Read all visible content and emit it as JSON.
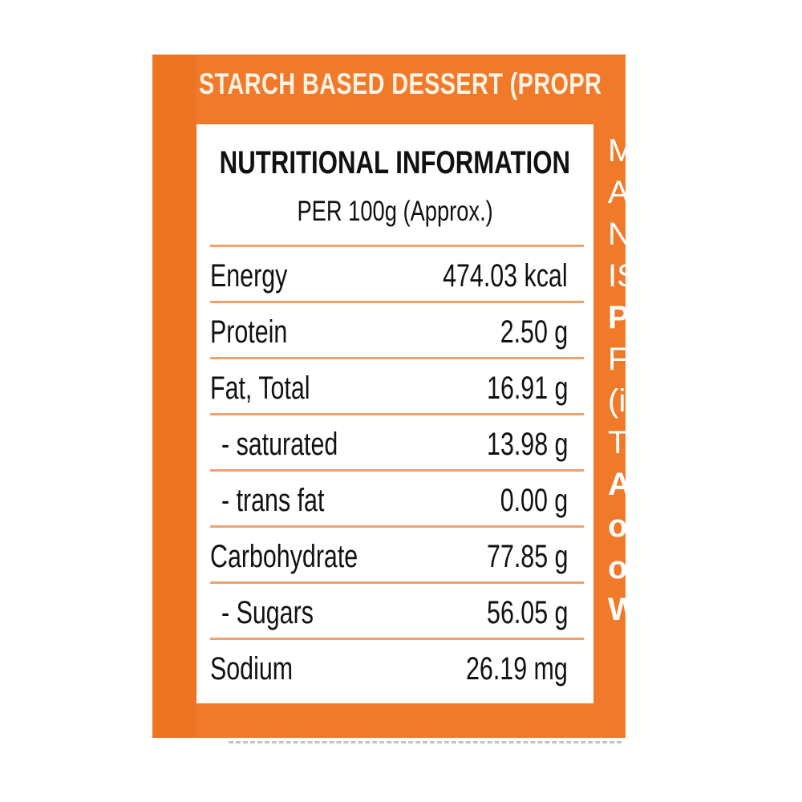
{
  "header": {
    "title": "STARCH BASED DESSERT (PROPR"
  },
  "side_text": [
    "M",
    "A",
    "N",
    "IS",
    "P",
    "F",
    "(i",
    "T",
    "A",
    "o",
    "o",
    "W"
  ],
  "label": {
    "heading": "NUTRITIONAL INFORMATION",
    "subheading": "PER 100g (Approx.)",
    "rows": [
      {
        "name": "Energy",
        "value": "474.03 kcal",
        "sub": false
      },
      {
        "name": "Protein",
        "value": "2.50 g",
        "sub": false
      },
      {
        "name": "Fat, Total",
        "value": "16.91 g",
        "sub": false
      },
      {
        "name": "- saturated",
        "value": "13.98 g",
        "sub": true
      },
      {
        "name": "- trans fat",
        "value": "0.00 g",
        "sub": true
      },
      {
        "name": "Carbohydrate",
        "value": "77.85 g",
        "sub": false
      },
      {
        "name": "- Sugars",
        "value": "56.05 g",
        "sub": true
      },
      {
        "name": "Sodium",
        "value": "26.19 mg",
        "sub": false
      }
    ]
  },
  "colors": {
    "brand_orange": "#f07a2a",
    "divider": "#f2a16c"
  }
}
